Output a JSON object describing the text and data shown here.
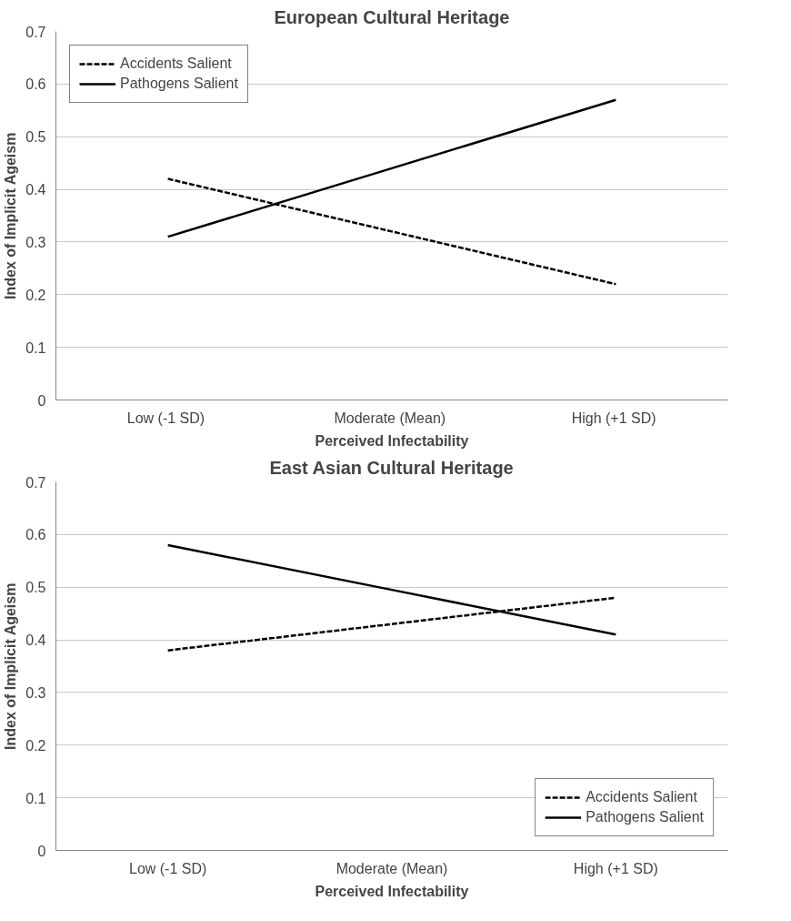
{
  "chart_data": [
    {
      "type": "line",
      "title": "European Cultural Heritage",
      "xlabel": "Perceived Infectability",
      "ylabel": "Index of Implicit Ageism",
      "categories": [
        "Low  (-1 SD)",
        "Moderate  (Mean)",
        "High  (+1 SD)"
      ],
      "ylim": [
        0,
        0.7
      ],
      "yticks": [
        0,
        0.1,
        0.2,
        0.3,
        0.4,
        0.5,
        0.6,
        0.7
      ],
      "grid": "y",
      "legend": "top left",
      "marker": "none",
      "series": [
        {
          "name": "Accidents Salient",
          "color": "#000000",
          "line_style": "dashed",
          "values": [
            0.42,
            0.32,
            0.22
          ]
        },
        {
          "name": "Pathogens Salient",
          "color": "#000000",
          "line_style": "solid",
          "values": [
            0.31,
            0.44,
            0.57
          ]
        }
      ]
    },
    {
      "type": "line",
      "title": "East Asian Cultural Heritage",
      "xlabel": "Perceived Infectability",
      "ylabel": "Index of Implicit Ageism",
      "categories": [
        "Low (-1 SD)",
        "Moderate (Mean)",
        "High (+1 SD)"
      ],
      "ylim": [
        0,
        0.7
      ],
      "yticks": [
        0,
        0.1,
        0.2,
        0.3,
        0.4,
        0.5,
        0.6,
        0.7
      ],
      "grid": "y",
      "legend": "bottom right",
      "marker": "none",
      "series": [
        {
          "name": "Accidents Salient",
          "color": "#000000",
          "line_style": "dashed",
          "values": [
            0.38,
            0.43,
            0.48
          ]
        },
        {
          "name": "Pathogens Salient",
          "color": "#000000",
          "line_style": "solid",
          "values": [
            0.58,
            0.495,
            0.41
          ]
        }
      ]
    }
  ]
}
